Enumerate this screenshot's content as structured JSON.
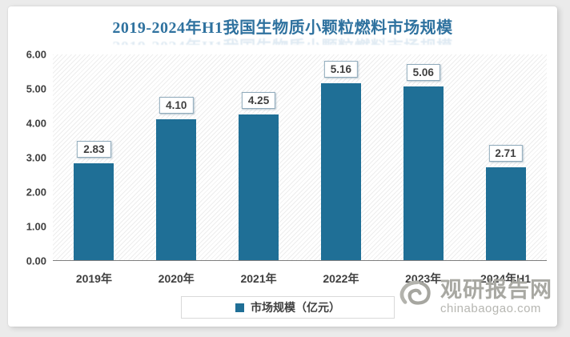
{
  "chart_data": {
    "type": "bar",
    "title": "2019-2024年H1我国生物质小颗粒燃料市场规模",
    "categories": [
      "2019年",
      "2020年",
      "2021年",
      "2022年",
      "2023年",
      "2024年H1"
    ],
    "series": [
      {
        "name": "市场规模（亿元）",
        "values": [
          2.83,
          4.1,
          4.25,
          5.16,
          5.06,
          2.71
        ]
      }
    ],
    "value_labels": [
      "2.83",
      "4.10",
      "4.25",
      "5.16",
      "5.06",
      "2.71"
    ],
    "y_ticks": [
      "6.00",
      "5.00",
      "4.00",
      "3.00",
      "2.00",
      "1.00",
      "0.00"
    ],
    "ylim": [
      0,
      6
    ],
    "grid": false,
    "legend_position": "bottom",
    "bar_color": "#1f6f96",
    "title_color": "#2f729f",
    "label_box_border_color": "#8faabb",
    "axis_text_color": "#3f3f3f"
  },
  "legend": {
    "label": "市场规模（亿元）",
    "marker_color": "#1f6f96"
  },
  "watermark": {
    "name": "观研报告网",
    "url": "chinabaogao.com"
  }
}
